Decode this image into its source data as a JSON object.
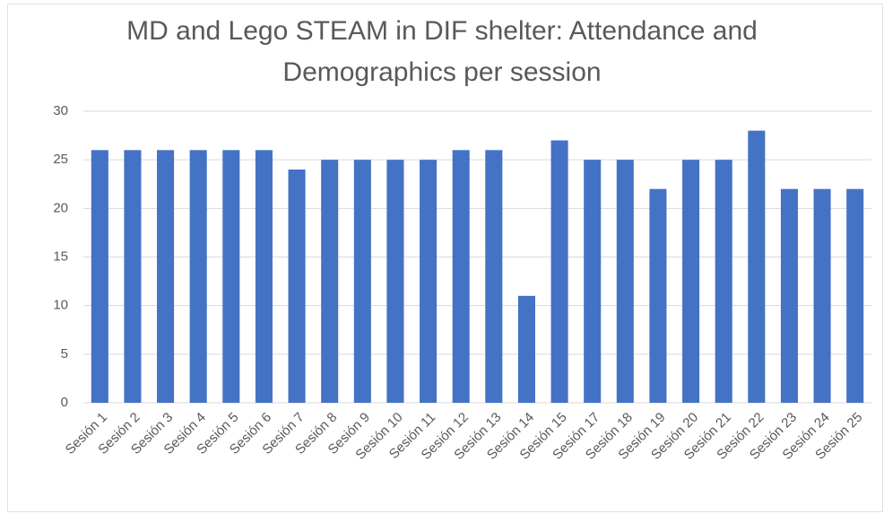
{
  "chart_data": {
    "type": "bar",
    "title": "MD and Lego STEAM in DIF shelter: Attendance and Demographics per session",
    "categories": [
      "Sesión 1",
      "Sesión 2",
      "Sesión 3",
      "Sesión 4",
      "Sesión 5",
      "Sesión 6",
      "Sesión 7",
      "Sesión 8",
      "Sesión 9",
      "Sesión 10",
      "Sesión 11",
      "Sesión 12",
      "Sesión 13",
      "Sesión 14",
      "Sesión 15",
      "Sesión 17",
      "Sesión 18",
      "Sesión 19",
      "Sesión 20",
      "Sesión 21",
      "Sesión 22",
      "Sesión 23",
      "Sesión 24",
      "Sesión 25"
    ],
    "values": [
      26,
      26,
      26,
      26,
      26,
      26,
      24,
      25,
      25,
      25,
      25,
      26,
      26,
      11,
      27,
      25,
      25,
      22,
      25,
      25,
      28,
      22,
      22,
      22
    ],
    "color": "#4472c4",
    "ylim": [
      0,
      30
    ],
    "yticks": [
      0,
      5,
      10,
      15,
      20,
      25,
      30
    ],
    "grid": true
  }
}
